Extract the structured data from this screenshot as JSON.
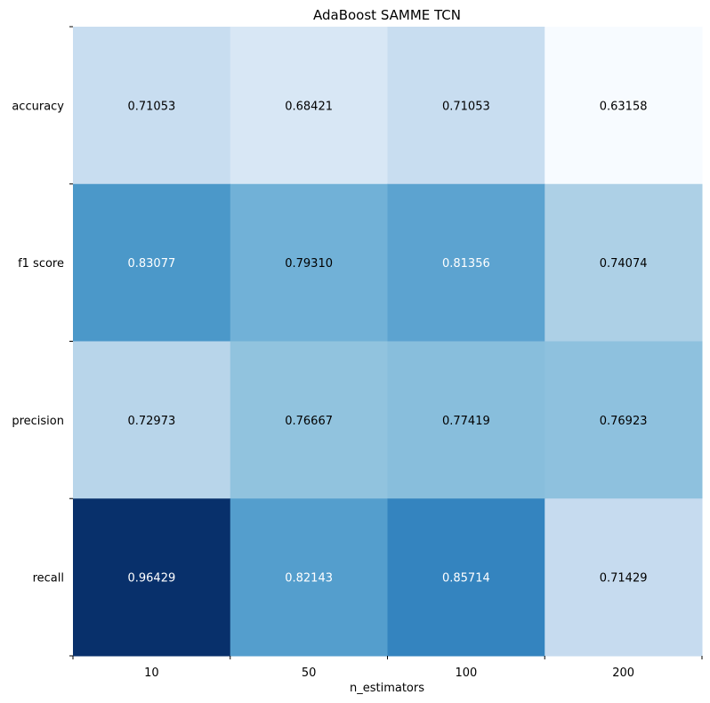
{
  "chart_data": {
    "type": "heatmap",
    "title": "AdaBoost SAMME TCN",
    "xlabel": "n_estimators",
    "ylabel": "",
    "x_categories": [
      "10",
      "50",
      "100",
      "200"
    ],
    "y_categories": [
      "accuracy",
      "f1 score",
      "precision",
      "recall"
    ],
    "values": [
      [
        0.71053,
        0.68421,
        0.71053,
        0.63158
      ],
      [
        0.83077,
        0.7931,
        0.81356,
        0.74074
      ],
      [
        0.72973,
        0.76667,
        0.77419,
        0.76923
      ],
      [
        0.96429,
        0.82143,
        0.85714,
        0.71429
      ]
    ],
    "value_labels": [
      [
        "0.71053",
        "0.68421",
        "0.71053",
        "0.63158"
      ],
      [
        "0.83077",
        "0.79310",
        "0.81356",
        "0.74074"
      ],
      [
        "0.72973",
        "0.76667",
        "0.77419",
        "0.76923"
      ],
      [
        "0.96429",
        "0.82143",
        "0.85714",
        "0.71429"
      ]
    ],
    "colormap": "Blues",
    "vmin": 0.63158,
    "vmax": 0.96429,
    "label_text_colors": {
      "dark": "#000000",
      "light": "#ffffff"
    },
    "grid": false,
    "legend": "none"
  }
}
